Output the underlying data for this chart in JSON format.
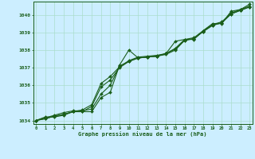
{
  "x": [
    0,
    1,
    2,
    3,
    4,
    5,
    6,
    7,
    8,
    9,
    10,
    11,
    12,
    13,
    14,
    15,
    16,
    17,
    18,
    19,
    20,
    21,
    22,
    23
  ],
  "series1": [
    1034.0,
    1034.2,
    1034.2,
    1034.3,
    1034.5,
    1034.5,
    1034.5,
    1035.3,
    1035.6,
    1037.15,
    1038.0,
    1037.55,
    1037.6,
    1037.65,
    1037.8,
    1038.5,
    1038.6,
    1038.6,
    1039.1,
    1039.5,
    1039.5,
    1040.2,
    1040.3,
    1040.6
  ],
  "series2": [
    1034.0,
    1034.1,
    1034.25,
    1034.35,
    1034.5,
    1034.5,
    1034.8,
    1035.9,
    1036.3,
    1037.0,
    1037.35,
    1037.55,
    1037.6,
    1037.65,
    1037.75,
    1038.0,
    1038.55,
    1038.65,
    1039.05,
    1039.4,
    1039.55,
    1040.05,
    1040.25,
    1040.45
  ],
  "series3": [
    1034.0,
    1034.1,
    1034.25,
    1034.35,
    1034.5,
    1034.6,
    1034.9,
    1036.1,
    1036.5,
    1037.05,
    1037.4,
    1037.6,
    1037.65,
    1037.7,
    1037.8,
    1038.1,
    1038.6,
    1038.7,
    1039.1,
    1039.45,
    1039.6,
    1040.1,
    1040.3,
    1040.5
  ],
  "series4": [
    1034.0,
    1034.15,
    1034.3,
    1034.45,
    1034.55,
    1034.55,
    1034.65,
    1035.5,
    1036.0,
    1037.1,
    1037.35,
    1037.55,
    1037.6,
    1037.65,
    1037.8,
    1038.05,
    1038.55,
    1038.65,
    1039.05,
    1039.4,
    1039.55,
    1040.05,
    1040.25,
    1040.45
  ],
  "bg_color": "#cceeff",
  "grid_color": "#aaddcc",
  "line_color": "#1a5e1a",
  "marker_color": "#1a5e1a",
  "ylim": [
    1033.8,
    1040.75
  ],
  "yticks": [
    1034,
    1035,
    1036,
    1037,
    1038,
    1039,
    1040
  ],
  "xlabel": "Graphe pression niveau de la mer (hPa)",
  "axis_color": "#1a5e1a",
  "tick_color": "#1a5e1a",
  "figwidth": 3.2,
  "figheight": 2.0,
  "dpi": 100
}
